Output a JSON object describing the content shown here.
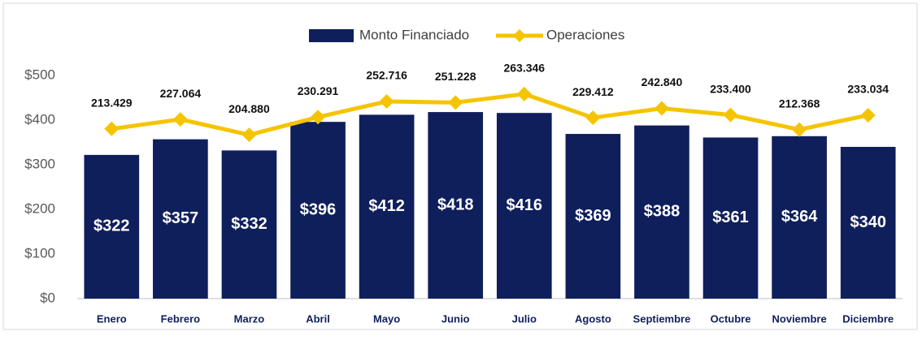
{
  "chart_data": {
    "type": "bar",
    "categories": [
      "Enero",
      "Febrero",
      "Marzo",
      "Abril",
      "Mayo",
      "Junio",
      "Julio",
      "Agosto",
      "Septiembre",
      "Octubre",
      "Noviembre",
      "Diciembre"
    ],
    "series": [
      {
        "name": "Monto Financiado",
        "type": "bar",
        "color": "#0f1f5c",
        "values": [
          322,
          357,
          332,
          396,
          412,
          418,
          416,
          369,
          388,
          361,
          364,
          340
        ],
        "value_labels": [
          "$322",
          "$357",
          "$332",
          "$396",
          "$412",
          "$418",
          "$416",
          "$369",
          "$388",
          "$361",
          "$364",
          "$340"
        ]
      },
      {
        "name": "Operaciones",
        "type": "line",
        "axis": "y2",
        "color": "#f5c400",
        "values": [
          213429,
          227064,
          204880,
          230291,
          252716,
          251228,
          263346,
          229412,
          242840,
          233400,
          212368,
          233034
        ],
        "value_labels": [
          "213.429",
          "227.064",
          "204.880",
          "230.291",
          "252.716",
          "251.228",
          "263.346",
          "229.412",
          "242.840",
          "233.400",
          "212.368",
          "233.034"
        ]
      }
    ],
    "ylim": [
      0,
      500
    ],
    "yticks": [
      {
        "value": 0,
        "label": "$0"
      },
      {
        "value": 100,
        "label": "$100"
      },
      {
        "value": 200,
        "label": "$200"
      },
      {
        "value": 300,
        "label": "$300"
      },
      {
        "value": 400,
        "label": "$400"
      },
      {
        "value": 500,
        "label": "$500"
      }
    ],
    "y2lim": [
      -30000,
      290000
    ],
    "grid": false,
    "legend": "top"
  }
}
